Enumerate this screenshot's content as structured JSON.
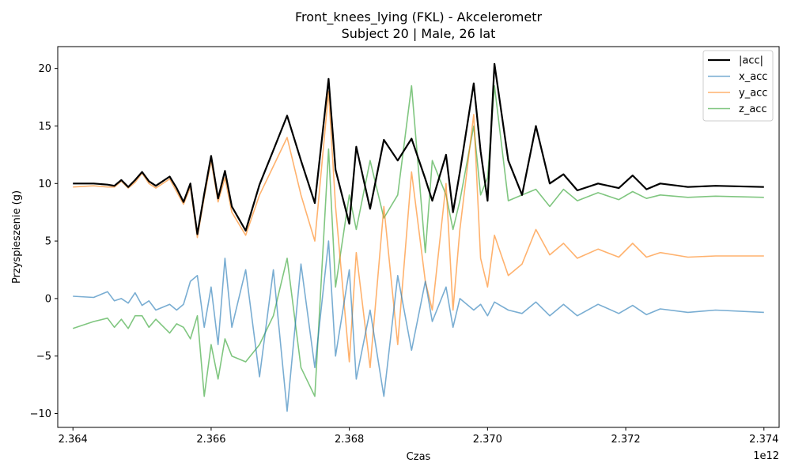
{
  "chart_data": {
    "type": "line",
    "title": "Front_knees_lying (FKL) - Akcelerometr",
    "subtitle": "Subject 20 | Male, 26 lat",
    "xlabel": "Czas",
    "ylabel": "Przyspieszenie (g)",
    "x_offset_label": "1e12",
    "xlim": [
      2.36378,
      2.37422
    ],
    "ylim": [
      -11.2,
      21.9
    ],
    "x_ticks": [
      2.364,
      2.366,
      2.368,
      2.37,
      2.372,
      2.374
    ],
    "x_tick_labels": [
      "2.364",
      "2.366",
      "2.368",
      "2.370",
      "2.372",
      "2.374"
    ],
    "y_ticks": [
      -10,
      -5,
      0,
      5,
      10,
      15,
      20
    ],
    "y_tick_labels": [
      "−10",
      "−5",
      "0",
      "5",
      "10",
      "15",
      "20"
    ],
    "grid": false,
    "legend_position": "top-right",
    "series": [
      {
        "name": "|acc|",
        "color": "#000000",
        "width": 2.2,
        "opacity": 1,
        "points": [
          [
            2.364,
            10.0
          ],
          [
            2.3643,
            10.0
          ],
          [
            2.3645,
            9.9
          ],
          [
            2.3646,
            9.8
          ],
          [
            2.3647,
            10.3
          ],
          [
            2.3648,
            9.7
          ],
          [
            2.3649,
            10.3
          ],
          [
            2.365,
            11.0
          ],
          [
            2.3651,
            10.2
          ],
          [
            2.3652,
            9.8
          ],
          [
            2.3654,
            10.6
          ],
          [
            2.3655,
            9.6
          ],
          [
            2.3656,
            8.4
          ],
          [
            2.3657,
            10.0
          ],
          [
            2.3658,
            5.6
          ],
          [
            2.3659,
            9.1
          ],
          [
            2.366,
            12.4
          ],
          [
            2.3661,
            8.7
          ],
          [
            2.3662,
            11.1
          ],
          [
            2.3663,
            8.0
          ],
          [
            2.3665,
            5.9
          ],
          [
            2.3667,
            9.9
          ],
          [
            2.3669,
            12.9
          ],
          [
            2.3671,
            15.9
          ],
          [
            2.3673,
            12.0
          ],
          [
            2.3675,
            8.3
          ],
          [
            2.3677,
            19.1
          ],
          [
            2.3678,
            11.2
          ],
          [
            2.368,
            6.5
          ],
          [
            2.3681,
            13.2
          ],
          [
            2.3683,
            7.8
          ],
          [
            2.3685,
            13.8
          ],
          [
            2.3687,
            12.0
          ],
          [
            2.3689,
            13.9
          ],
          [
            2.3691,
            10.4
          ],
          [
            2.3692,
            8.5
          ],
          [
            2.3694,
            12.5
          ],
          [
            2.3695,
            7.5
          ],
          [
            2.3696,
            11.0
          ],
          [
            2.3698,
            18.7
          ],
          [
            2.3699,
            12.8
          ],
          [
            2.37,
            8.5
          ],
          [
            2.3701,
            20.4
          ],
          [
            2.3703,
            12.0
          ],
          [
            2.3705,
            9.0
          ],
          [
            2.3707,
            15.0
          ],
          [
            2.3709,
            10.0
          ],
          [
            2.3711,
            10.8
          ],
          [
            2.3713,
            9.4
          ],
          [
            2.3716,
            10.0
          ],
          [
            2.3719,
            9.6
          ],
          [
            2.3721,
            10.7
          ],
          [
            2.3723,
            9.5
          ],
          [
            2.3725,
            10.0
          ],
          [
            2.3729,
            9.7
          ],
          [
            2.3733,
            9.8
          ],
          [
            2.374,
            9.7
          ]
        ]
      },
      {
        "name": "x_acc",
        "color": "#1f77b4",
        "width": 1.6,
        "opacity": 0.6,
        "points": [
          [
            2.364,
            0.2
          ],
          [
            2.3643,
            0.1
          ],
          [
            2.3645,
            0.6
          ],
          [
            2.3646,
            -0.2
          ],
          [
            2.3647,
            0.0
          ],
          [
            2.3648,
            -0.4
          ],
          [
            2.3649,
            0.5
          ],
          [
            2.365,
            -0.6
          ],
          [
            2.3651,
            -0.2
          ],
          [
            2.3652,
            -1.0
          ],
          [
            2.3654,
            -0.5
          ],
          [
            2.3655,
            -1.0
          ],
          [
            2.3656,
            -0.5
          ],
          [
            2.3657,
            1.5
          ],
          [
            2.3658,
            2.0
          ],
          [
            2.3659,
            -2.5
          ],
          [
            2.366,
            1.0
          ],
          [
            2.3661,
            -4.0
          ],
          [
            2.3662,
            3.5
          ],
          [
            2.3663,
            -2.5
          ],
          [
            2.3665,
            2.5
          ],
          [
            2.3667,
            -6.8
          ],
          [
            2.3669,
            2.5
          ],
          [
            2.3671,
            -9.8
          ],
          [
            2.3673,
            3.0
          ],
          [
            2.3675,
            -6.0
          ],
          [
            2.3677,
            5.0
          ],
          [
            2.3678,
            -5.0
          ],
          [
            2.368,
            2.5
          ],
          [
            2.3681,
            -7.0
          ],
          [
            2.3683,
            -1.0
          ],
          [
            2.3685,
            -8.5
          ],
          [
            2.3687,
            2.0
          ],
          [
            2.3689,
            -4.5
          ],
          [
            2.3691,
            1.5
          ],
          [
            2.3692,
            -2.0
          ],
          [
            2.3694,
            1.0
          ],
          [
            2.3695,
            -2.5
          ],
          [
            2.3696,
            0.0
          ],
          [
            2.3698,
            -1.0
          ],
          [
            2.3699,
            -0.5
          ],
          [
            2.37,
            -1.5
          ],
          [
            2.3701,
            -0.3
          ],
          [
            2.3703,
            -1.0
          ],
          [
            2.3705,
            -1.3
          ],
          [
            2.3707,
            -0.3
          ],
          [
            2.3709,
            -1.5
          ],
          [
            2.3711,
            -0.5
          ],
          [
            2.3713,
            -1.5
          ],
          [
            2.3716,
            -0.5
          ],
          [
            2.3719,
            -1.3
          ],
          [
            2.3721,
            -0.6
          ],
          [
            2.3723,
            -1.4
          ],
          [
            2.3725,
            -0.9
          ],
          [
            2.3729,
            -1.2
          ],
          [
            2.3733,
            -1.0
          ],
          [
            2.374,
            -1.2
          ]
        ]
      },
      {
        "name": "y_acc",
        "color": "#ff7f0e",
        "width": 1.6,
        "opacity": 0.6,
        "points": [
          [
            2.364,
            9.7
          ],
          [
            2.3643,
            9.8
          ],
          [
            2.3645,
            9.7
          ],
          [
            2.3646,
            9.7
          ],
          [
            2.3647,
            10.2
          ],
          [
            2.3648,
            9.6
          ],
          [
            2.3649,
            10.1
          ],
          [
            2.365,
            10.9
          ],
          [
            2.3651,
            10.0
          ],
          [
            2.3652,
            9.6
          ],
          [
            2.3654,
            10.4
          ],
          [
            2.3655,
            9.3
          ],
          [
            2.3656,
            8.2
          ],
          [
            2.3657,
            9.7
          ],
          [
            2.3658,
            5.3
          ],
          [
            2.3659,
            8.8
          ],
          [
            2.366,
            12.0
          ],
          [
            2.3661,
            8.4
          ],
          [
            2.3662,
            10.5
          ],
          [
            2.3663,
            7.5
          ],
          [
            2.3665,
            5.5
          ],
          [
            2.3667,
            9.0
          ],
          [
            2.3669,
            11.5
          ],
          [
            2.3671,
            14.0
          ],
          [
            2.3673,
            9.0
          ],
          [
            2.3675,
            5.0
          ],
          [
            2.3677,
            18.0
          ],
          [
            2.3678,
            8.0
          ],
          [
            2.368,
            -5.5
          ],
          [
            2.3681,
            4.0
          ],
          [
            2.3683,
            -6.0
          ],
          [
            2.3685,
            8.0
          ],
          [
            2.3687,
            -4.0
          ],
          [
            2.3689,
            11.0
          ],
          [
            2.3691,
            1.5
          ],
          [
            2.3692,
            -1.0
          ],
          [
            2.3694,
            10.0
          ],
          [
            2.3695,
            -1.0
          ],
          [
            2.3696,
            6.0
          ],
          [
            2.3698,
            16.0
          ],
          [
            2.3699,
            3.5
          ],
          [
            2.37,
            1.0
          ],
          [
            2.3701,
            5.5
          ],
          [
            2.3703,
            2.0
          ],
          [
            2.3705,
            3.0
          ],
          [
            2.3707,
            6.0
          ],
          [
            2.3709,
            3.8
          ],
          [
            2.3711,
            4.8
          ],
          [
            2.3713,
            3.5
          ],
          [
            2.3716,
            4.3
          ],
          [
            2.3719,
            3.6
          ],
          [
            2.3721,
            4.8
          ],
          [
            2.3723,
            3.6
          ],
          [
            2.3725,
            4.0
          ],
          [
            2.3729,
            3.6
          ],
          [
            2.3733,
            3.7
          ],
          [
            2.374,
            3.7
          ]
        ]
      },
      {
        "name": "z_acc",
        "color": "#2ca02c",
        "width": 1.6,
        "opacity": 0.6,
        "points": [
          [
            2.364,
            -2.6
          ],
          [
            2.3643,
            -2.0
          ],
          [
            2.3645,
            -1.7
          ],
          [
            2.3646,
            -2.5
          ],
          [
            2.3647,
            -1.8
          ],
          [
            2.3648,
            -2.6
          ],
          [
            2.3649,
            -1.5
          ],
          [
            2.365,
            -1.5
          ],
          [
            2.3651,
            -2.5
          ],
          [
            2.3652,
            -1.8
          ],
          [
            2.3654,
            -3.0
          ],
          [
            2.3655,
            -2.2
          ],
          [
            2.3656,
            -2.5
          ],
          [
            2.3657,
            -3.5
          ],
          [
            2.3658,
            -1.5
          ],
          [
            2.3659,
            -8.5
          ],
          [
            2.366,
            -4.0
          ],
          [
            2.3661,
            -7.0
          ],
          [
            2.3662,
            -3.5
          ],
          [
            2.3663,
            -5.0
          ],
          [
            2.3665,
            -5.5
          ],
          [
            2.3667,
            -4.0
          ],
          [
            2.3669,
            -1.5
          ],
          [
            2.3671,
            3.5
          ],
          [
            2.3673,
            -6.0
          ],
          [
            2.3675,
            -8.5
          ],
          [
            2.3677,
            13.0
          ],
          [
            2.3678,
            1.0
          ],
          [
            2.368,
            9.0
          ],
          [
            2.3681,
            6.0
          ],
          [
            2.3683,
            12.0
          ],
          [
            2.3685,
            7.0
          ],
          [
            2.3687,
            9.0
          ],
          [
            2.3689,
            18.5
          ],
          [
            2.3691,
            4.0
          ],
          [
            2.3692,
            12.0
          ],
          [
            2.3694,
            9.0
          ],
          [
            2.3695,
            6.0
          ],
          [
            2.3696,
            8.5
          ],
          [
            2.3698,
            15.0
          ],
          [
            2.3699,
            9.0
          ],
          [
            2.37,
            10.5
          ],
          [
            2.3701,
            18.5
          ],
          [
            2.3703,
            8.5
          ],
          [
            2.3705,
            9.0
          ],
          [
            2.3707,
            9.5
          ],
          [
            2.3709,
            8.0
          ],
          [
            2.3711,
            9.5
          ],
          [
            2.3713,
            8.5
          ],
          [
            2.3716,
            9.2
          ],
          [
            2.3719,
            8.6
          ],
          [
            2.3721,
            9.3
          ],
          [
            2.3723,
            8.7
          ],
          [
            2.3725,
            9.0
          ],
          [
            2.3729,
            8.8
          ],
          [
            2.3733,
            8.9
          ],
          [
            2.374,
            8.8
          ]
        ]
      }
    ]
  }
}
